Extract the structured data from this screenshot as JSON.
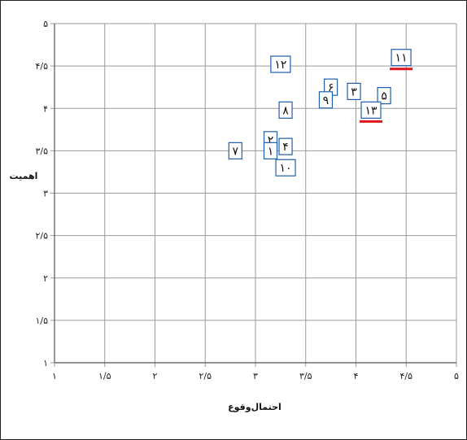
{
  "chart_data": {
    "type": "scatter",
    "title": "",
    "xlabel": "احتمال‌وقوع",
    "ylabel": "اهمیت",
    "xlim": [
      1,
      5
    ],
    "ylim": [
      1,
      5
    ],
    "grid": true,
    "x_ticks": [
      "۱",
      "۱/۵",
      "۲",
      "۲/۵",
      "۳",
      "۳/۵",
      "۴",
      "۴/۵",
      "۵"
    ],
    "y_ticks": [
      "۱",
      "۱/۵",
      "۲",
      "۲/۵",
      "۳",
      "۳/۵",
      "۴",
      "۴/۵",
      "۵"
    ],
    "points": [
      {
        "label": "۱۱",
        "x": 4.45,
        "y": 4.6,
        "highlight": true
      },
      {
        "label": "۱۲",
        "x": 3.25,
        "y": 4.52,
        "highlight": false
      },
      {
        "label": "۶",
        "x": 3.75,
        "y": 4.25,
        "highlight": false
      },
      {
        "label": "۳",
        "x": 3.98,
        "y": 4.2,
        "highlight": false
      },
      {
        "label": "۵",
        "x": 4.28,
        "y": 4.15,
        "highlight": false
      },
      {
        "label": "۹",
        "x": 3.7,
        "y": 4.1,
        "highlight": false
      },
      {
        "label": "۱۳",
        "x": 4.15,
        "y": 3.98,
        "highlight": true
      },
      {
        "label": "۸",
        "x": 3.3,
        "y": 3.98,
        "highlight": false
      },
      {
        "label": "۲",
        "x": 3.15,
        "y": 3.63,
        "highlight": false
      },
      {
        "label": "۴",
        "x": 3.3,
        "y": 3.55,
        "highlight": false
      },
      {
        "label": "۱",
        "x": 3.15,
        "y": 3.5,
        "highlight": false
      },
      {
        "label": "۷",
        "x": 2.8,
        "y": 3.5,
        "highlight": false
      },
      {
        "label": "۱۰",
        "x": 3.3,
        "y": 3.3,
        "highlight": false
      }
    ],
    "highlight_color": "#e0141e",
    "label_border_color": "#1f5fa8"
  }
}
